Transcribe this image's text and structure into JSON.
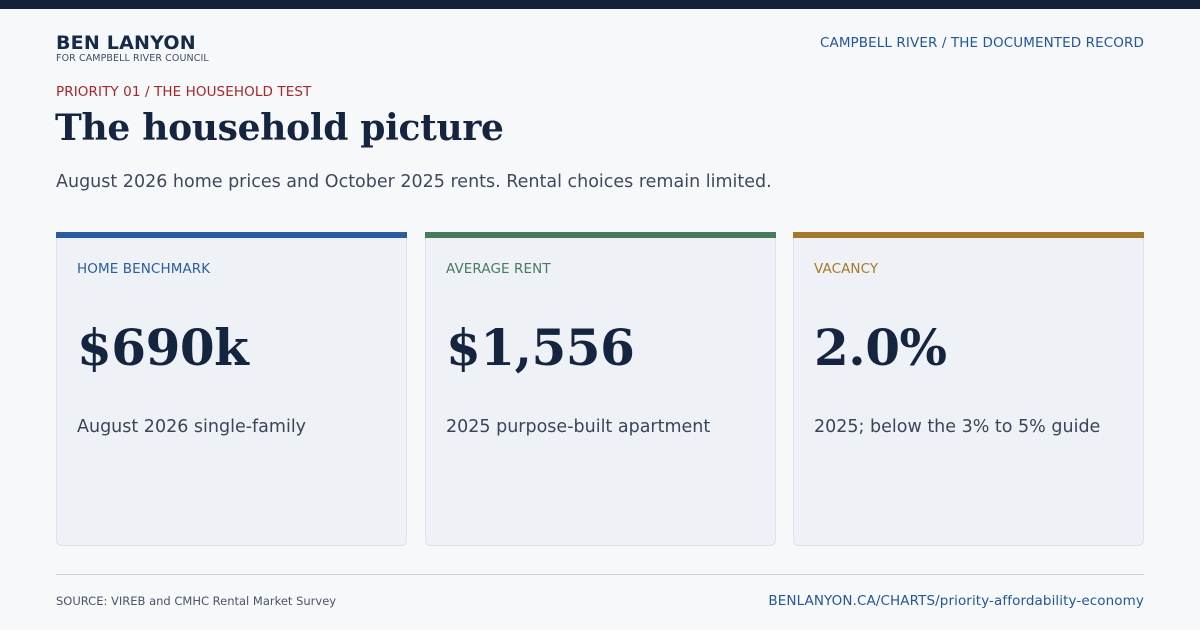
{
  "header": {
    "name": "BEN LANYON",
    "subtitle": "FOR CAMPBELL RIVER COUNCIL",
    "right_label": "CAMPBELL RIVER / THE DOCUMENTED RECORD"
  },
  "kicker": "PRIORITY 01 / THE HOUSEHOLD TEST",
  "title": "The household picture",
  "subtitle": "August 2026 home prices and October 2025 rents. Rental choices remain limited.",
  "cards": [
    {
      "label": "HOME BENCHMARK",
      "value": "$690k",
      "description": "August 2026 single-family",
      "accent_color": "#2a5d9f"
    },
    {
      "label": "AVERAGE RENT",
      "value": "$1,556",
      "description": "2025 purpose-built apartment",
      "accent_color": "#4a7a5c"
    },
    {
      "label": "VACANCY",
      "value": "2.0%",
      "description": "2025; below the 3% to 5% guide",
      "accent_color": "#a5782c"
    }
  ],
  "footer": {
    "source": "SOURCE: VIREB and CMHC Rental Market Survey",
    "url": "BENLANYON.CA/CHARTS/priority-affordability-economy"
  },
  "colors": {
    "kicker": "#a8262c",
    "link": "#24579a",
    "top_bar": "#14213a"
  }
}
